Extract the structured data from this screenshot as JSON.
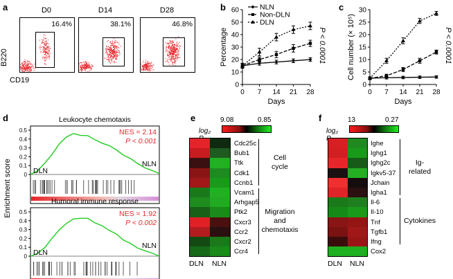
{
  "panel_labels": {
    "a": "a",
    "b": "b",
    "c": "c",
    "d": "d",
    "e": "e",
    "f": "f"
  },
  "panel_a": {
    "ylabel": "B220",
    "xlabel": "CD19",
    "plots": [
      {
        "title": "D0",
        "pct": "16.4%"
      },
      {
        "title": "D14",
        "pct": "38.1%"
      },
      {
        "title": "D28",
        "pct": "46.8%"
      }
    ],
    "dot_color": "#e8262b"
  },
  "chart_data": [
    {
      "type": "line",
      "title": "",
      "xlabel": "Days",
      "ylabel": "Percentage",
      "x": [
        0,
        7,
        14,
        21,
        28
      ],
      "xlim": [
        0,
        28
      ],
      "ylim": [
        0,
        60
      ],
      "yticks": [
        0,
        10,
        20,
        30,
        40,
        50,
        60
      ],
      "series": [
        {
          "name": "NLN",
          "values": [
            15,
            17,
            18,
            19,
            20
          ],
          "errors": [
            1.5,
            1.5,
            1.5,
            1.5,
            1.5
          ],
          "style": "solid",
          "marker": "diamond"
        },
        {
          "name": "Non-DLN",
          "values": [
            15,
            20,
            24,
            29,
            33
          ],
          "errors": [
            2,
            2,
            2.5,
            3,
            2.5
          ],
          "style": "dashed",
          "marker": "square"
        },
        {
          "name": "DLN",
          "values": [
            15,
            26,
            38,
            44,
            47
          ],
          "errors": [
            2,
            3,
            3,
            3,
            3
          ],
          "style": "dotted",
          "marker": "triangle"
        }
      ],
      "annotation": "P < 0.0001"
    },
    {
      "type": "line",
      "title": "",
      "xlabel": "Days",
      "ylabel": "Cell number (× 10⁵)",
      "x": [
        0,
        7,
        14,
        21,
        28
      ],
      "xlim": [
        0,
        28
      ],
      "ylim": [
        0,
        30
      ],
      "yticks": [
        0,
        5,
        10,
        15,
        20,
        25,
        30
      ],
      "series": [
        {
          "name": "NLN",
          "values": [
            2.5,
            2.7,
            2.8,
            2.9,
            3.0
          ],
          "errors": [
            0.5,
            0.5,
            0.5,
            0.5,
            0.5
          ],
          "style": "solid",
          "marker": "diamond"
        },
        {
          "name": "Non-DLN",
          "values": [
            2.5,
            3.5,
            6.0,
            9.5,
            13.0
          ],
          "errors": [
            0.5,
            0.6,
            0.8,
            1.0,
            0.8
          ],
          "style": "dashed",
          "marker": "square"
        },
        {
          "name": "DLN",
          "values": [
            2.5,
            9.5,
            17.5,
            25.5,
            28.5
          ],
          "errors": [
            0.6,
            1.0,
            1.2,
            1.0,
            0.8
          ],
          "style": "dotted",
          "marker": "triangle"
        }
      ],
      "annotation": "P < 0.0001"
    }
  ],
  "panel_d": {
    "ylabel": "Enrichment score",
    "yticks": [
      "0.5",
      "0.4",
      "0.3",
      "0.2",
      "0.1",
      "0"
    ],
    "plots": [
      {
        "title": "Leukocyte chemotaxis",
        "nes": "NES = 2.14",
        "p": "P < 0.001",
        "left": "DLN",
        "right": "NLN",
        "curve": [
          0,
          0.05,
          0.12,
          0.22,
          0.33,
          0.42,
          0.46,
          0.45,
          0.43,
          0.4,
          0.36,
          0.32,
          0.27,
          0.22,
          0.17,
          0.12,
          0.07,
          0.03,
          0.01
        ]
      },
      {
        "title": "Humoral immune response",
        "nes": "NES = 1.92",
        "p": "P < 0.002",
        "left": "DLN",
        "right": "NLN",
        "curve": [
          0,
          0.04,
          0.1,
          0.2,
          0.3,
          0.38,
          0.42,
          0.43,
          0.42,
          0.39,
          0.35,
          0.3,
          0.25,
          0.19,
          0.14,
          0.09,
          0.05,
          0.02,
          0.0
        ]
      }
    ],
    "accent": "#e8262b",
    "curve_color": "#22cc22"
  },
  "panel_e": {
    "scale_label": "log₂ P",
    "scale_min": "9.08",
    "scale_max": "0.85",
    "columns": [
      "DLN",
      "NLN"
    ],
    "genes": [
      "Cdc25c",
      "Bub1",
      "Ttk",
      "Cdk1",
      "Ccnb1",
      "Vcam1",
      "Arhgap5",
      "Ptk2",
      "Cxcr3",
      "Ccr2",
      "Cxcr2",
      "Ccr4"
    ],
    "colors": [
      [
        "#e4242a",
        "#0f2a10"
      ],
      [
        "#c71c20",
        "#1f5a20"
      ],
      [
        "#3a1010",
        "#23b023"
      ],
      [
        "#8a1515",
        "#1f8a20"
      ],
      [
        "#a01818",
        "#1a9a1a"
      ],
      [
        "#1a7a1a",
        "#22b022"
      ],
      [
        "#1e8c1e",
        "#22aa22"
      ],
      [
        "#186018",
        "#1a8a1a"
      ],
      [
        "#e02024",
        "#4a1010"
      ],
      [
        "#b31c1f",
        "#2a1010"
      ],
      [
        "#134a13",
        "#1a7a1a"
      ],
      [
        "#176a17",
        "#1a8a1a"
      ]
    ],
    "groups": [
      {
        "lines": [
          "Cell",
          "cycle"
        ]
      },
      {
        "lines": [
          "Migration",
          "and",
          "chemotaxis"
        ]
      }
    ]
  },
  "panel_f": {
    "scale_label": "log₂ P",
    "scale_min": "13",
    "scale_max": "0.27",
    "columns": [
      "DLN",
      "NLN"
    ],
    "genes": [
      "Ighe",
      "Ighg1",
      "Ighg2c",
      "Igkv5-37",
      "Jchain",
      "Igha1",
      "Il-6",
      "Il-10",
      "Tnf",
      "Tgfb1",
      "Ifng",
      "Cox2"
    ],
    "colors": [
      [
        "#d81f24",
        "#1f8a20"
      ],
      [
        "#d21f24",
        "#1a9a1a"
      ],
      [
        "#e7262b",
        "#185a18"
      ],
      [
        "#1a1010",
        "#22b022"
      ],
      [
        "#f03030",
        "#150d0d"
      ],
      [
        "#e02428",
        "#2a1010"
      ],
      [
        "#1a7a1a",
        "#1f7f1f"
      ],
      [
        "#168a16",
        "#1a9a1a"
      ],
      [
        "#8a1515",
        "#951515"
      ],
      [
        "#7a1212",
        "#a01818"
      ],
      [
        "#3a0c0c",
        "#9a1616"
      ],
      [
        "#1fb01f",
        "#1fb01f"
      ]
    ],
    "groups": [
      {
        "lines": [
          "Ig-",
          "related"
        ]
      },
      {
        "lines": [
          "Cytokines"
        ]
      }
    ]
  }
}
